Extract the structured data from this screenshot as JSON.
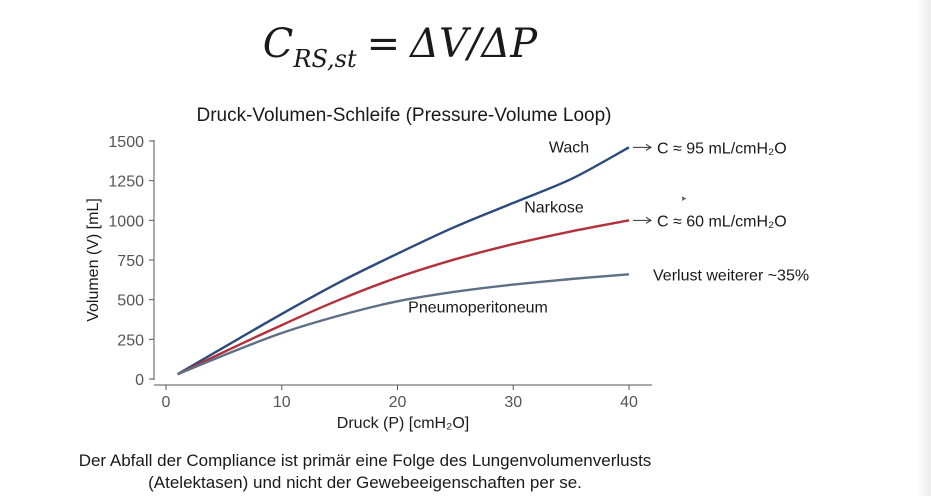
{
  "formula": {
    "c": "C",
    "sub": "RS,st",
    "eq": "=",
    "rhs": "ΔV/ΔP"
  },
  "chart_data": {
    "type": "line",
    "title": "Druck-Volumen-Schleife (Pressure-Volume Loop)",
    "xlabel": "Druck (P) [cmH₂O]",
    "ylabel": "Volumen (V) [mL]",
    "xlim": [
      0,
      42
    ],
    "ylim": [
      0,
      1500
    ],
    "xticks": [
      0,
      10,
      20,
      30,
      40
    ],
    "yticks": [
      0,
      250,
      500,
      750,
      1000,
      1250,
      1500
    ],
    "grid": false,
    "series": [
      {
        "name": "Wach",
        "color": "#2b4a7e",
        "x": [
          1,
          5,
          10,
          15,
          20,
          25,
          30,
          35,
          40
        ],
        "y": [
          30,
          200,
          410,
          610,
          790,
          960,
          1110,
          1260,
          1460
        ]
      },
      {
        "name": "Narkose",
        "color": "#b2313a",
        "x": [
          1,
          5,
          10,
          15,
          20,
          25,
          30,
          35,
          40
        ],
        "y": [
          30,
          170,
          340,
          500,
          640,
          755,
          850,
          930,
          1000
        ]
      },
      {
        "name": "Pneumoperitoneum",
        "color": "#5e6f86",
        "x": [
          1,
          5,
          10,
          15,
          20,
          25,
          30,
          35,
          40
        ],
        "y": [
          30,
          150,
          290,
          400,
          490,
          550,
          595,
          630,
          660
        ]
      }
    ],
    "annotations": [
      {
        "text": "C ≈ 95 mL/cmH₂O",
        "series": 0
      },
      {
        "text": "C ≈ 60 mL/cmH₂O",
        "series": 1
      },
      {
        "text": "Verlust weiterer ~35%",
        "series": 2
      }
    ]
  },
  "footnote": {
    "line1": "Der Abfall der Compliance ist primär eine Folge des Lungenvolumenverlusts",
    "line2": "(Atelektasen) und nicht der Gewebeeigenschaften per se."
  }
}
